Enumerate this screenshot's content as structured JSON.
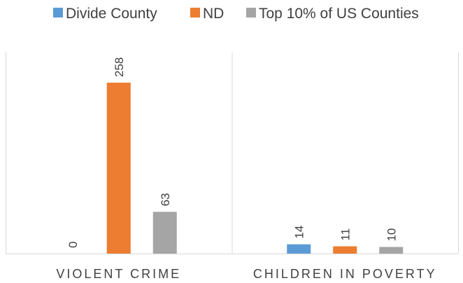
{
  "chart_data": {
    "type": "bar",
    "categories": [
      "VIOLENT CRIME",
      "CHILDREN IN POVERTY"
    ],
    "series": [
      {
        "name": "Divide County",
        "values": [
          0,
          14
        ],
        "color": "#5B9BD5"
      },
      {
        "name": "ND",
        "values": [
          258,
          11
        ],
        "color": "#ED7D31"
      },
      {
        "name": "Top 10% of US Counties",
        "values": [
          63,
          10
        ],
        "color": "#A5A5A5"
      }
    ],
    "data_labels": [
      "0",
      "14",
      "258",
      "11",
      "63",
      "10"
    ],
    "ylim": [
      0,
      300
    ],
    "legend_position": "top",
    "grid": false,
    "gridline_color": "#D9D9D9"
  }
}
